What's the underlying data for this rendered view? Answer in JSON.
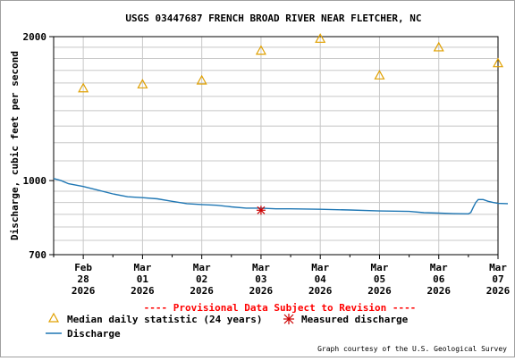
{
  "chart_data": {
    "type": "line",
    "title": "USGS 03447687 FRENCH BROAD RIVER NEAR FLETCHER, NC",
    "ylabel": "Discharge, cubic feet per second",
    "xlabel": "",
    "y_scale": "log",
    "ylim": [
      700,
      2000
    ],
    "y_ticks": [
      "700",
      "1000",
      "2000"
    ],
    "x_range": [
      "2026-02-28T00:00",
      "2026-03-07T12:00"
    ],
    "x_ticks": [
      {
        "line1": "Feb",
        "line2": "28",
        "line3": "2026",
        "date": "2026-02-28T12:00"
      },
      {
        "line1": "Mar",
        "line2": "01",
        "line3": "2026",
        "date": "2026-03-01T12:00"
      },
      {
        "line1": "Mar",
        "line2": "02",
        "line3": "2026",
        "date": "2026-03-02T12:00"
      },
      {
        "line1": "Mar",
        "line2": "03",
        "line3": "2026",
        "date": "2026-03-03T12:00"
      },
      {
        "line1": "Mar",
        "line2": "04",
        "line3": "2026",
        "date": "2026-03-04T12:00"
      },
      {
        "line1": "Mar",
        "line2": "05",
        "line3": "2026",
        "date": "2026-03-05T12:00"
      },
      {
        "line1": "Mar",
        "line2": "06",
        "line3": "2026",
        "date": "2026-03-06T12:00"
      },
      {
        "line1": "Mar",
        "line2": "07",
        "line3": "2026",
        "date": "2026-03-07T12:00"
      }
    ],
    "grid": true,
    "series": [
      {
        "name": "Discharge",
        "type": "line",
        "color": "#1f77b4",
        "points": [
          [
            "2026-02-28T00:00",
            1010
          ],
          [
            "2026-02-28T03:00",
            1000
          ],
          [
            "2026-02-28T06:00",
            985
          ],
          [
            "2026-02-28T12:00",
            972
          ],
          [
            "2026-02-28T18:00",
            955
          ],
          [
            "2026-03-01T00:00",
            938
          ],
          [
            "2026-03-01T06:00",
            925
          ],
          [
            "2026-03-01T12:00",
            921
          ],
          [
            "2026-03-01T18:00",
            916
          ],
          [
            "2026-03-02T00:00",
            905
          ],
          [
            "2026-03-02T06:00",
            895
          ],
          [
            "2026-03-02T12:00",
            891
          ],
          [
            "2026-03-02T18:00",
            888
          ],
          [
            "2026-03-03T00:00",
            881
          ],
          [
            "2026-03-03T06:00",
            876
          ],
          [
            "2026-03-03T12:00",
            876
          ],
          [
            "2026-03-03T18:00",
            873
          ],
          [
            "2026-03-04T00:00",
            873
          ],
          [
            "2026-03-04T12:00",
            871
          ],
          [
            "2026-03-05T00:00",
            868
          ],
          [
            "2026-03-05T12:00",
            864
          ],
          [
            "2026-03-06T00:00",
            862
          ],
          [
            "2026-03-06T06:00",
            857
          ],
          [
            "2026-03-06T12:00",
            855
          ],
          [
            "2026-03-06T18:00",
            853
          ],
          [
            "2026-03-07T00:00",
            852
          ],
          [
            "2026-03-07T01:00",
            858
          ],
          [
            "2026-03-07T02:00",
            880
          ],
          [
            "2026-03-07T03:00",
            900
          ],
          [
            "2026-03-07T04:00",
            913
          ],
          [
            "2026-03-07T06:00",
            913
          ],
          [
            "2026-03-07T08:00",
            905
          ],
          [
            "2026-03-07T10:00",
            900
          ],
          [
            "2026-03-07T12:00",
            896
          ],
          [
            "2026-03-07T16:00",
            895
          ]
        ]
      },
      {
        "name": "Median daily statistic (24 years)",
        "type": "scatter",
        "marker": "triangle",
        "color": "#e0a000",
        "points": [
          [
            "2026-02-28T12:00",
            1560
          ],
          [
            "2026-03-01T12:00",
            1590
          ],
          [
            "2026-03-02T12:00",
            1620
          ],
          [
            "2026-03-03T12:00",
            1870
          ],
          [
            "2026-03-04T12:00",
            1980
          ],
          [
            "2026-03-05T12:00",
            1660
          ],
          [
            "2026-03-06T12:00",
            1900
          ],
          [
            "2026-03-07T12:00",
            1760
          ]
        ]
      },
      {
        "name": "Measured discharge",
        "type": "scatter",
        "marker": "asterisk",
        "color": "#cc0000",
        "points": [
          [
            "2026-03-03T12:00",
            867
          ]
        ]
      }
    ]
  },
  "provisional_note": "---- Provisional Data Subject to Revision ----",
  "legend": {
    "median_label": "Median daily statistic (24 years)",
    "measured_label": "Measured discharge",
    "discharge_label": "Discharge"
  },
  "credit": "Graph courtesy of the U.S. Geological Survey"
}
